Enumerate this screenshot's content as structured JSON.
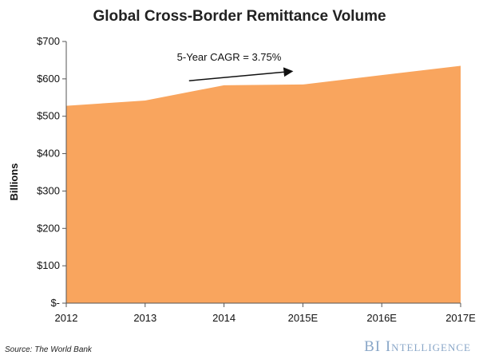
{
  "chart_data": {
    "type": "area",
    "title": "Global Cross-Border Remittance Volume",
    "ylabel": "Billions",
    "xlabel": "",
    "categories": [
      "2012",
      "2013",
      "2014",
      "2015E",
      "2016E",
      "2017E"
    ],
    "series": [
      {
        "values": [
          528,
          542,
          583,
          585,
          610,
          635
        ],
        "color": "#f9a55e"
      }
    ],
    "ylim": [
      0,
      700
    ],
    "yticks": [
      0,
      100,
      200,
      300,
      400,
      500,
      600,
      700
    ],
    "ytick_labels": [
      "$-",
      "$100",
      "$200",
      "$300",
      "$400",
      "$500",
      "$600",
      "$700"
    ],
    "grid": false,
    "annotation": {
      "text": "5-Year CAGR = 3.75%",
      "arrow": {
        "from": {
          "x": "2013",
          "y": 595
        },
        "to": {
          "x": "2015E",
          "y": 620
        }
      }
    }
  },
  "footer": {
    "source": "Source: The World Bank",
    "brand": "BI Intelligence"
  }
}
